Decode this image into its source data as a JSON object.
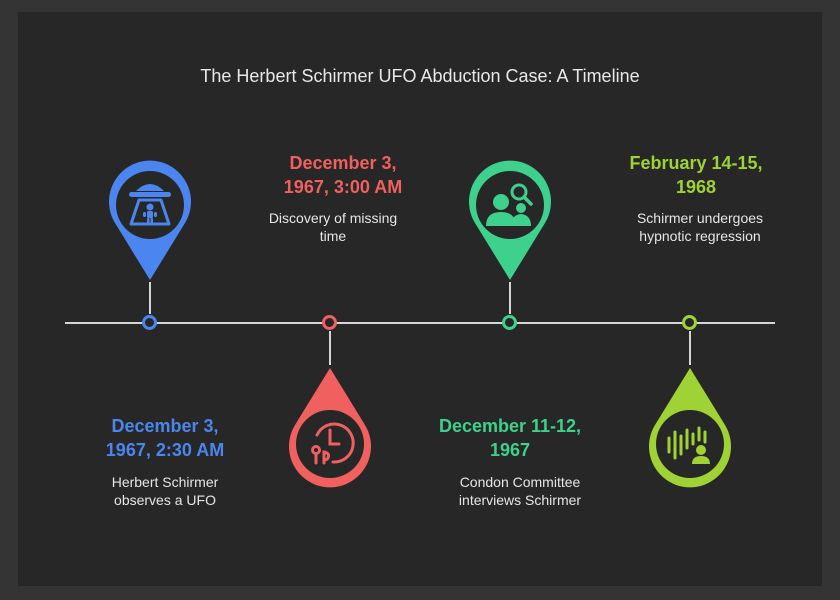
{
  "title": "The Herbert Schirmer UFO Abduction Case: A Timeline",
  "colors": {
    "blue": "#4b86f0",
    "red": "#f0605e",
    "green": "#3ed18d",
    "lime": "#9fd234",
    "line": "#d6d6d6",
    "background": "#272727"
  },
  "events": [
    {
      "date_line1": "December 3,",
      "date_line2": "1967, 2:30 AM",
      "desc_line1": "Herbert Schirmer",
      "desc_line2": "observes a UFO",
      "icon": "ufo-abduction-icon",
      "color": "#4b86f0"
    },
    {
      "date_line1": "December 3,",
      "date_line2": "1967, 3:00 AM",
      "desc_line1": "Discovery of missing",
      "desc_line2": "time",
      "icon": "clock-missing-time-icon",
      "color": "#f0605e"
    },
    {
      "date_line1": "December 11-12,",
      "date_line2": "1967",
      "desc_line1": "Condon Committee",
      "desc_line2": "interviews Schirmer",
      "icon": "interview-search-icon",
      "color": "#3ed18d"
    },
    {
      "date_line1": "February 14-15,",
      "date_line2": "1968",
      "desc_line1": "Schirmer undergoes",
      "desc_line2": "hypnotic regression",
      "icon": "voice-recording-icon",
      "color": "#9fd234"
    }
  ]
}
